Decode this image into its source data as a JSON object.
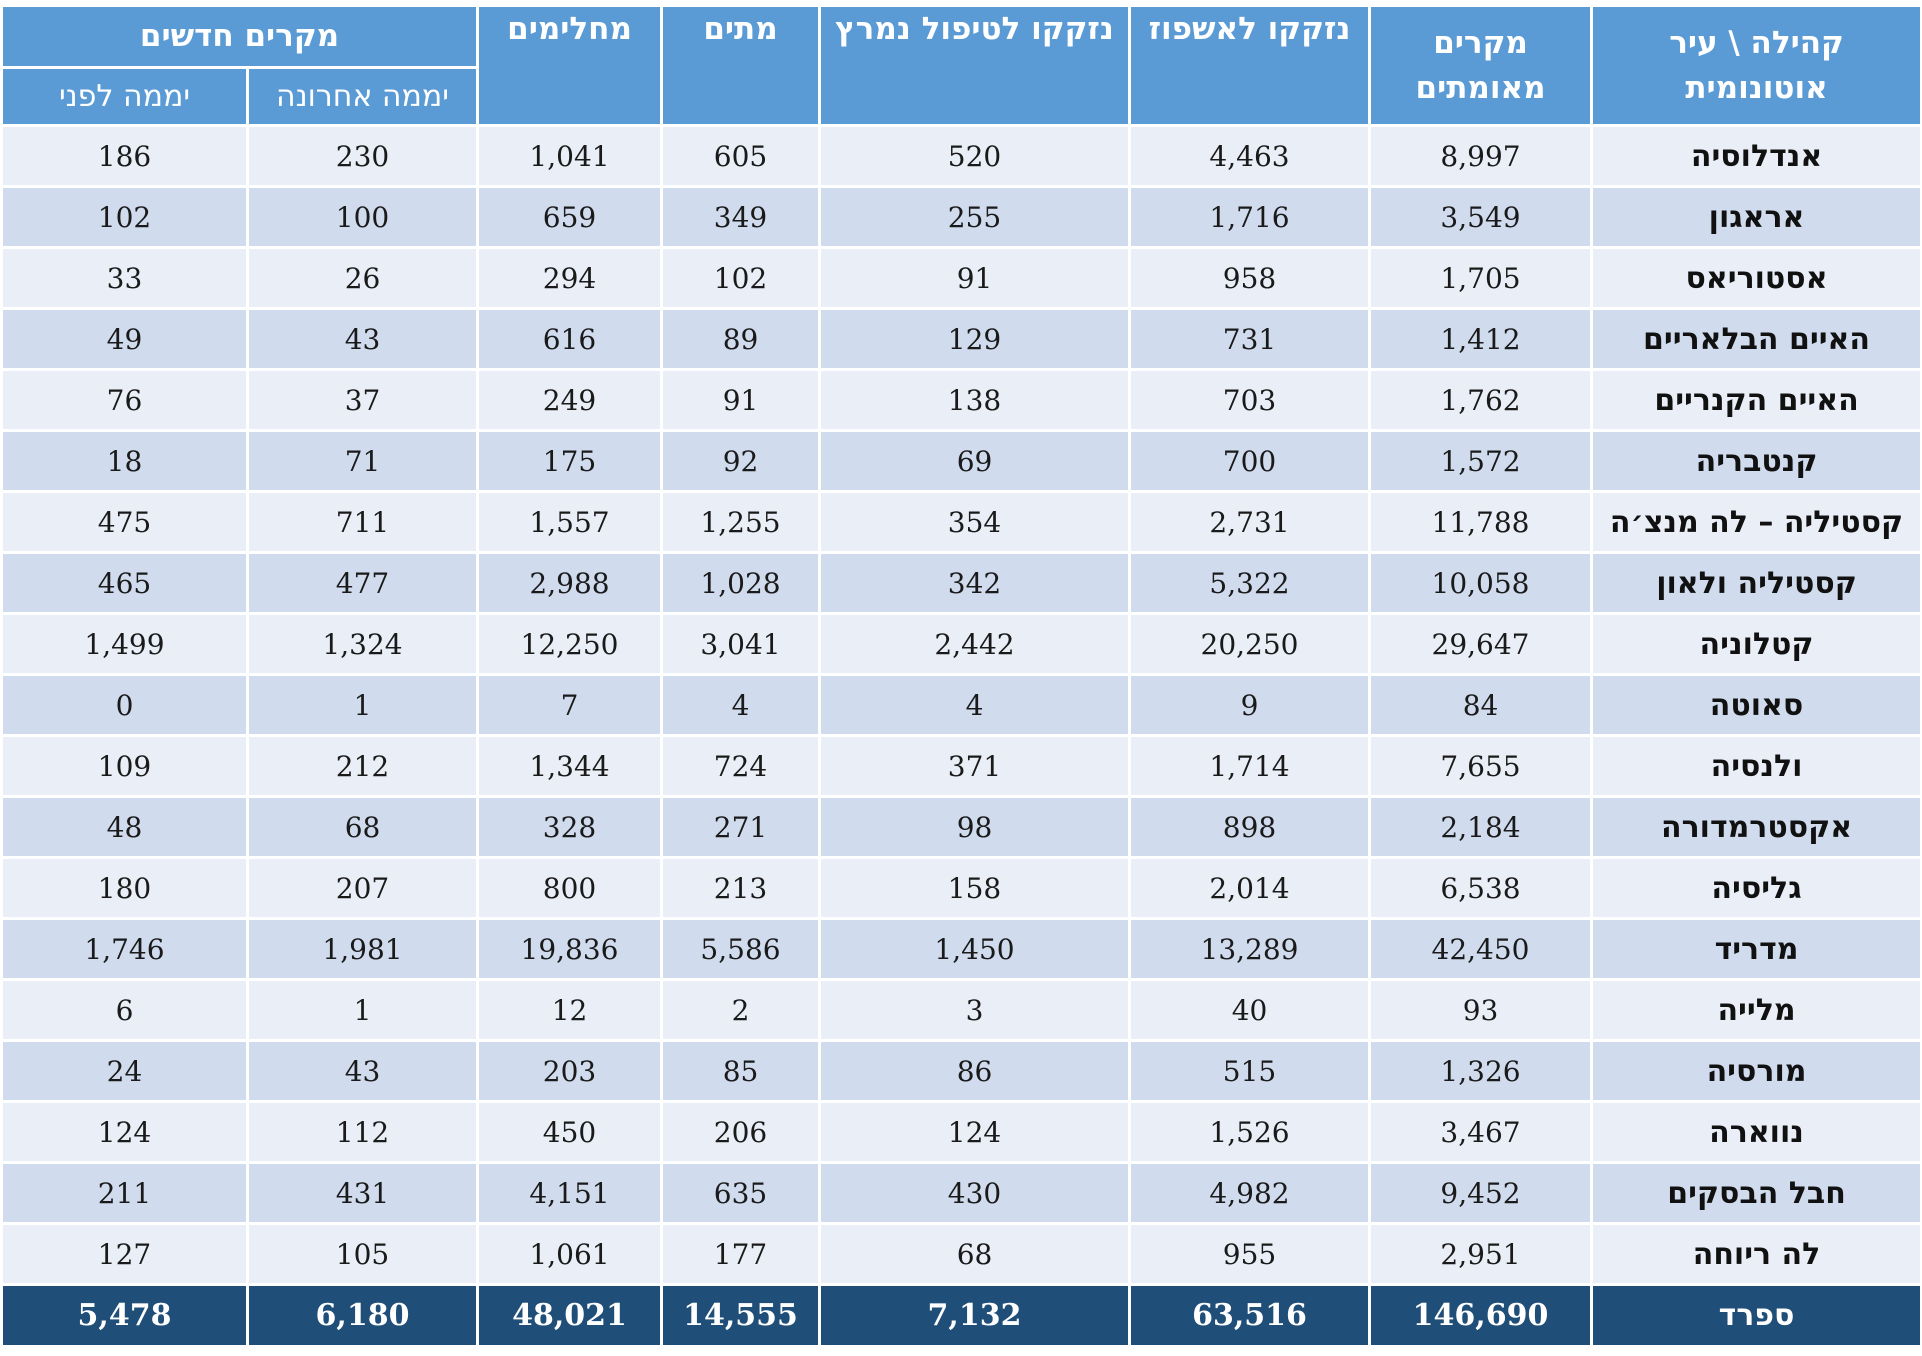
{
  "headers": {
    "community": "קהילה \\ עיר אוטונומית",
    "confirmed": "מקרים מאומתים",
    "hospitalized": "נזקקו לאשפוז",
    "icu": "נזקקו לטיפול נמרץ",
    "deaths": "מתים",
    "recovered": "מחלימים",
    "new_cases": "מקרים חדשים",
    "last_day": "יממה אחרונה",
    "day_before": "יממה לפני"
  },
  "rows": [
    {
      "name": "אנדלוסיה",
      "confirmed": "8,997",
      "hospitalized": "4,463",
      "icu": "520",
      "deaths": "605",
      "recovered": "1,041",
      "last_day": "230",
      "day_before": "186"
    },
    {
      "name": "אראגון",
      "confirmed": "3,549",
      "hospitalized": "1,716",
      "icu": "255",
      "deaths": "349",
      "recovered": "659",
      "last_day": "100",
      "day_before": "102"
    },
    {
      "name": "אסטוריאס",
      "confirmed": "1,705",
      "hospitalized": "958",
      "icu": "91",
      "deaths": "102",
      "recovered": "294",
      "last_day": "26",
      "day_before": "33"
    },
    {
      "name": "האיים הבלאריים",
      "confirmed": "1,412",
      "hospitalized": "731",
      "icu": "129",
      "deaths": "89",
      "recovered": "616",
      "last_day": "43",
      "day_before": "49"
    },
    {
      "name": "האיים הקנריים",
      "confirmed": "1,762",
      "hospitalized": "703",
      "icu": "138",
      "deaths": "91",
      "recovered": "249",
      "last_day": "37",
      "day_before": "76"
    },
    {
      "name": "קנטבריה",
      "confirmed": "1,572",
      "hospitalized": "700",
      "icu": "69",
      "deaths": "92",
      "recovered": "175",
      "last_day": "71",
      "day_before": "18"
    },
    {
      "name": "קסטיליה – לה מנצ׳ה",
      "confirmed": "11,788",
      "hospitalized": "2,731",
      "icu": "354",
      "deaths": "1,255",
      "recovered": "1,557",
      "last_day": "711",
      "day_before": "475"
    },
    {
      "name": "קסטיליה ולאון",
      "confirmed": "10,058",
      "hospitalized": "5,322",
      "icu": "342",
      "deaths": "1,028",
      "recovered": "2,988",
      "last_day": "477",
      "day_before": "465"
    },
    {
      "name": "קטלוניה",
      "confirmed": "29,647",
      "hospitalized": "20,250",
      "icu": "2,442",
      "deaths": "3,041",
      "recovered": "12,250",
      "last_day": "1,324",
      "day_before": "1,499"
    },
    {
      "name": "סאוטה",
      "confirmed": "84",
      "hospitalized": "9",
      "icu": "4",
      "deaths": "4",
      "recovered": "7",
      "last_day": "1",
      "day_before": "0"
    },
    {
      "name": "ולנסיה",
      "confirmed": "7,655",
      "hospitalized": "1,714",
      "icu": "371",
      "deaths": "724",
      "recovered": "1,344",
      "last_day": "212",
      "day_before": "109"
    },
    {
      "name": "אקסטרמדורה",
      "confirmed": "2,184",
      "hospitalized": "898",
      "icu": "98",
      "deaths": "271",
      "recovered": "328",
      "last_day": "68",
      "day_before": "48"
    },
    {
      "name": "גליסיה",
      "confirmed": "6,538",
      "hospitalized": "2,014",
      "icu": "158",
      "deaths": "213",
      "recovered": "800",
      "last_day": "207",
      "day_before": "180"
    },
    {
      "name": "מדריד",
      "confirmed": "42,450",
      "hospitalized": "13,289",
      "icu": "1,450",
      "deaths": "5,586",
      "recovered": "19,836",
      "last_day": "1,981",
      "day_before": "1,746"
    },
    {
      "name": "מלייה",
      "confirmed": "93",
      "hospitalized": "40",
      "icu": "3",
      "deaths": "2",
      "recovered": "12",
      "last_day": "1",
      "day_before": "6"
    },
    {
      "name": "מורסיה",
      "confirmed": "1,326",
      "hospitalized": "515",
      "icu": "86",
      "deaths": "85",
      "recovered": "203",
      "last_day": "43",
      "day_before": "24"
    },
    {
      "name": "נווארה",
      "confirmed": "3,467",
      "hospitalized": "1,526",
      "icu": "124",
      "deaths": "206",
      "recovered": "450",
      "last_day": "112",
      "day_before": "124"
    },
    {
      "name": "חבל הבסקים",
      "confirmed": "9,452",
      "hospitalized": "4,982",
      "icu": "430",
      "deaths": "635",
      "recovered": "4,151",
      "last_day": "431",
      "day_before": "211"
    },
    {
      "name": "לה ריוחה",
      "confirmed": "2,951",
      "hospitalized": "955",
      "icu": "68",
      "deaths": "177",
      "recovered": "1,061",
      "last_day": "105",
      "day_before": "127"
    }
  ],
  "total": {
    "name": "ספרד",
    "confirmed": "146,690",
    "hospitalized": "63,516",
    "icu": "7,132",
    "deaths": "14,555",
    "recovered": "48,021",
    "last_day": "6,180",
    "day_before": "5,478"
  }
}
